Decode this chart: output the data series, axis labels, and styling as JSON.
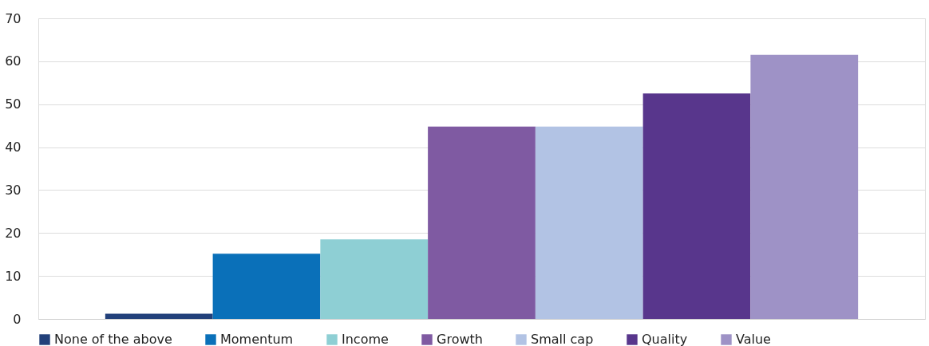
{
  "chart_data": {
    "type": "bar",
    "categories": [
      null
    ],
    "series": [
      {
        "name": "None of the above",
        "color": "#22407a",
        "values": [
          1.2
        ]
      },
      {
        "name": "Momentum",
        "color": "#0a70b9",
        "values": [
          15.2
        ]
      },
      {
        "name": "Income",
        "color": "#8ecfd4",
        "values": [
          18.5
        ]
      },
      {
        "name": "Growth",
        "color": "#7f5aa2",
        "values": [
          44.8
        ]
      },
      {
        "name": "Small cap",
        "color": "#b2c3e4",
        "values": [
          44.8
        ]
      },
      {
        "name": "Quality",
        "color": "#58368c",
        "values": [
          52.5
        ]
      },
      {
        "name": "Value",
        "color": "#9e92c6",
        "values": [
          61.5
        ]
      }
    ],
    "ylim": [
      0,
      70
    ],
    "yticks": [
      0,
      10,
      20,
      30,
      40,
      50,
      60,
      70
    ],
    "grid": "y",
    "legend": "bottom"
  }
}
